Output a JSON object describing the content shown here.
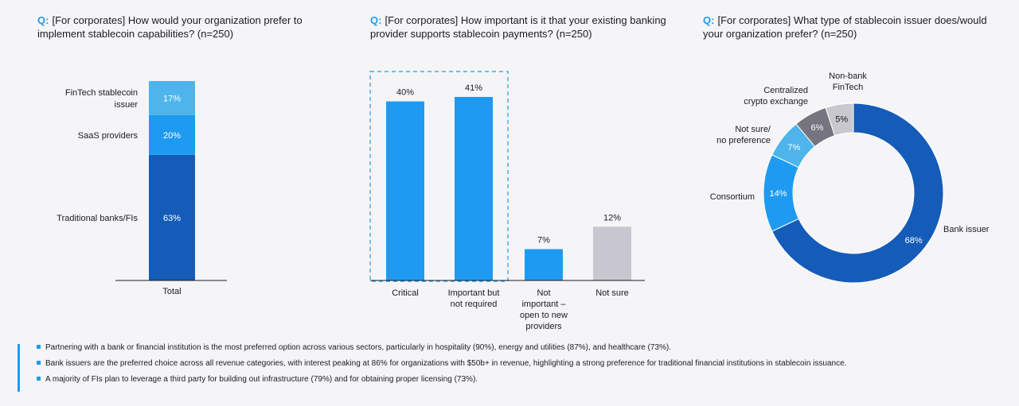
{
  "colors": {
    "accent": "#1e9bf0",
    "dark_blue": "#155cb8",
    "mid_blue": "#1e9bf0",
    "light_blue": "#4db5ec",
    "grey": "#c8c7cf",
    "dark_grey": "#76757f",
    "light_grey": "#c9c8cf"
  },
  "q_marker": "Q:",
  "questions": [
    {
      "line1": "[For corporates] How would your organization prefer to",
      "line2": "implement stablecoin capabilities? (n=250)"
    },
    {
      "line1": "[For corporates] How important is it that your existing banking",
      "line2": "provider supports stablecoin payments? (n=250)"
    },
    {
      "line1": "[For corporates] What type of stablecoin issuer does/would",
      "line2": "your organization prefer? (n=250)"
    }
  ],
  "chart_data": [
    {
      "type": "bar",
      "stacked": true,
      "title": "[For corporates] How would your organization prefer to implement stablecoin capabilities? (n=250)",
      "categories": [
        "Total"
      ],
      "series": [
        {
          "name": "Traditional banks/FIs",
          "values": [
            63
          ],
          "label": "63%"
        },
        {
          "name": "SaaS providers",
          "values": [
            20
          ],
          "label": "20%"
        },
        {
          "name": "FinTech stablecoin issuer",
          "values": [
            17
          ],
          "label": "17%"
        }
      ],
      "ylim": [
        0,
        100
      ]
    },
    {
      "type": "bar",
      "title": "[For corporates] How important is it that your existing banking provider supports stablecoin payments? (n=250)",
      "categories": [
        {
          "lines": [
            "Critical"
          ]
        },
        {
          "lines": [
            "Important but",
            "not required"
          ]
        },
        {
          "lines": [
            "Not",
            "important –",
            "open to new",
            "providers"
          ]
        },
        {
          "lines": [
            "Not sure"
          ]
        }
      ],
      "values": [
        40,
        41,
        7,
        12
      ],
      "labels": [
        "40%",
        "41%",
        "7%",
        "12%"
      ],
      "ylim": [
        0,
        45
      ],
      "highlight": "Critical + Important but not required"
    },
    {
      "type": "pie",
      "donut": true,
      "title": "[For corporates] What type of stablecoin issuer does/would your organization prefer? (n=250)",
      "slices": [
        {
          "name": "Bank issuer",
          "lines": [
            "Bank issuer"
          ],
          "value": 68,
          "label": "68%"
        },
        {
          "name": "Consortium",
          "lines": [
            "Consortium"
          ],
          "value": 14,
          "label": "14%"
        },
        {
          "name": "Not sure/ no preference",
          "lines": [
            "Not sure/",
            "no preference"
          ],
          "value": 7,
          "label": "7%"
        },
        {
          "name": "Centralized crypto exchange",
          "lines": [
            "Centralized",
            "crypto exchange"
          ],
          "value": 6,
          "label": "6%"
        },
        {
          "name": "Non-bank FinTech",
          "lines": [
            "Non-bank",
            "FinTech"
          ],
          "value": 5,
          "label": "5%"
        }
      ]
    }
  ],
  "notes": [
    "Partnering with a bank or financial institution is the most preferred option across various sectors, particularly in hospitality (90%), energy and utilities (87%), and healthcare (73%).",
    "Bank issuers are the preferred choice across all revenue categories, with interest peaking at 86% for organizations with $50b+ in revenue, highlighting a strong preference for traditional financial institutions in stablecoin issuance.",
    "A majority of FIs plan to leverage a third party for building out infrastructure (79%) and for obtaining proper licensing (73%)."
  ]
}
